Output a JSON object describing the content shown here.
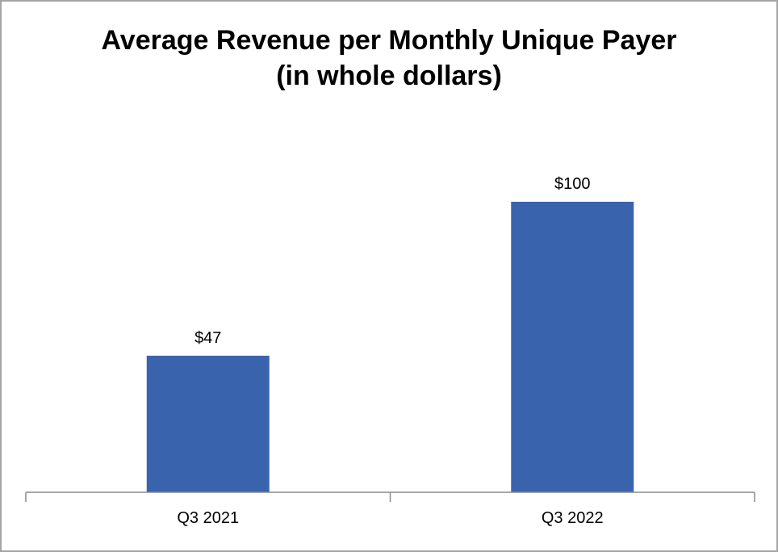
{
  "chart_data": {
    "type": "bar",
    "title": "Average Revenue per Monthly Unique Payer",
    "subtitle": "(in whole dollars)",
    "categories": [
      "Q3 2021",
      "Q3 2022"
    ],
    "values": [
      47,
      100
    ],
    "data_labels": [
      "$47",
      "$100"
    ],
    "xlabel": "",
    "ylabel": "",
    "ylim": [
      0,
      120
    ],
    "grid": false,
    "legend": "none",
    "bar_color": "#3a63ad"
  }
}
